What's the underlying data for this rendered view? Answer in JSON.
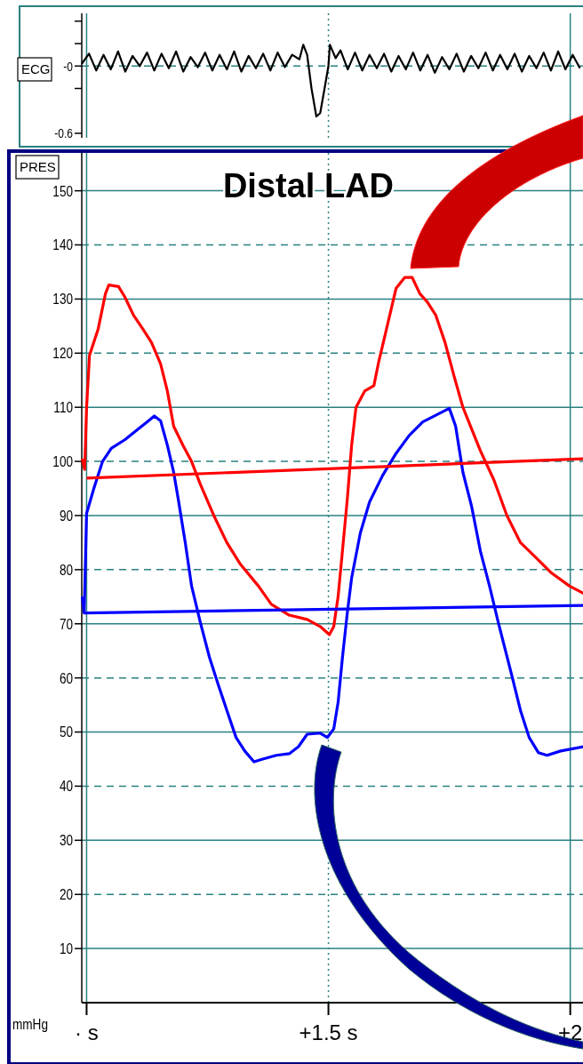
{
  "chart_data": [
    {
      "type": "line",
      "ylabel": "ECG",
      "xlim": [
        0.99,
        2.03
      ],
      "ylim": [
        -0.64,
        0.47
      ],
      "xticks": [
        {
          "value": 1,
          "label": null
        },
        {
          "value": 1.5,
          "label": null
        },
        {
          "value": 2,
          "label": null
        }
      ],
      "yticks": [
        {
          "value": 0.4,
          "label": null
        },
        {
          "value": 0.2,
          "label": null
        },
        {
          "value": 0,
          "label": "-0"
        },
        {
          "value": -0.2,
          "label": null
        },
        {
          "value": -0.6,
          "label": "-0.6"
        }
      ],
      "tick_labels": "y",
      "grid": "x",
      "ref_lines": [
        {
          "axis": "y",
          "value": 0,
          "color": "#2a8080",
          "line_style": "dashed"
        }
      ],
      "series": [
        {
          "color": "#000000",
          "x": [
            0.99,
            1.005,
            1.02,
            1.035,
            1.05,
            1.065,
            1.08,
            1.095,
            1.11,
            1.125,
            1.14,
            1.155,
            1.17,
            1.185,
            1.2,
            1.215,
            1.23,
            1.245,
            1.26,
            1.275,
            1.29,
            1.305,
            1.32,
            1.335,
            1.35,
            1.365,
            1.38,
            1.395,
            1.41,
            1.425,
            1.44,
            1.448,
            1.456,
            1.465,
            1.475,
            1.483,
            1.492,
            1.5,
            1.503,
            1.515,
            1.525,
            1.54,
            1.555,
            1.57,
            1.585,
            1.6,
            1.615,
            1.63,
            1.645,
            1.66,
            1.675,
            1.69,
            1.705,
            1.72,
            1.735,
            1.75,
            1.765,
            1.78,
            1.795,
            1.81,
            1.825,
            1.84,
            1.855,
            1.87,
            1.885,
            1.9,
            1.915,
            1.93,
            1.945,
            1.96,
            1.975,
            1.99,
            2.005,
            2.02
          ],
          "values": [
            0.02,
            0.11,
            -0.04,
            0.1,
            -0.03,
            0.13,
            -0.05,
            0.09,
            0.0,
            0.12,
            -0.04,
            0.11,
            -0.02,
            0.13,
            -0.05,
            0.08,
            -0.01,
            0.12,
            -0.04,
            0.1,
            -0.03,
            0.13,
            -0.05,
            0.09,
            -0.02,
            0.11,
            -0.04,
            0.12,
            -0.01,
            0.1,
            0.06,
            0.19,
            0.1,
            -0.2,
            -0.45,
            -0.42,
            -0.2,
            0.0,
            0.19,
            0.07,
            0.14,
            -0.03,
            0.12,
            -0.04,
            0.1,
            -0.02,
            0.11,
            -0.05,
            0.09,
            -0.03,
            0.12,
            -0.04,
            0.1,
            -0.06,
            0.08,
            -0.03,
            0.11,
            -0.05,
            0.09,
            -0.02,
            0.12,
            -0.04,
            0.1,
            -0.03,
            0.11,
            -0.05,
            0.09,
            -0.02,
            0.12,
            -0.04,
            0.13,
            -0.03,
            0.1,
            -0.02
          ]
        }
      ]
    },
    {
      "type": "line",
      "title": "Distal LAD",
      "ylabel": "PRES",
      "annotations": [
        "mmHg"
      ],
      "xlim": [
        0.99,
        2.03
      ],
      "ylim": [
        0,
        157
      ],
      "xticks": [
        {
          "value": 1,
          "label": "· s"
        },
        {
          "value": 1.5,
          "label": "+1.5 s"
        },
        {
          "value": 2,
          "label": "+2"
        }
      ],
      "yticks": [
        10,
        20,
        30,
        40,
        50,
        60,
        70,
        80,
        90,
        100,
        110,
        120,
        130,
        140,
        150
      ],
      "grid": true,
      "series": [
        {
          "color": "#ff0000",
          "x": [
            0.991,
            0.996,
            1.0,
            1.006,
            1.024,
            1.039,
            1.046,
            1.066,
            1.079,
            1.097,
            1.116,
            1.134,
            1.153,
            1.167,
            1.18,
            1.199,
            1.217,
            1.235,
            1.263,
            1.29,
            1.318,
            1.355,
            1.382,
            1.419,
            1.456,
            1.483,
            1.502,
            1.511,
            1.52,
            1.529,
            1.539,
            1.548,
            1.557,
            1.575,
            1.594,
            1.603,
            1.618,
            1.64,
            1.658,
            1.673,
            1.689,
            1.704,
            1.722,
            1.741,
            1.759,
            1.778,
            1.814,
            1.842,
            1.869,
            1.897,
            1.925,
            1.961,
            1.998,
            2.028
          ],
          "values": [
            100.5,
            98.5,
            110,
            119.6,
            124.5,
            131,
            132.6,
            132.3,
            130.4,
            127,
            124.5,
            122,
            118,
            113,
            106.5,
            103,
            100,
            95.8,
            90,
            85,
            81,
            77,
            73.6,
            71.6,
            70.8,
            69.5,
            68,
            69.5,
            75,
            83.5,
            93,
            103,
            110,
            113,
            114,
            118,
            123.7,
            132,
            134,
            134,
            131,
            129.5,
            127,
            122,
            116,
            110,
            102,
            96.6,
            90,
            85,
            82.6,
            79.4,
            77,
            75.6
          ]
        },
        {
          "color": "#0000ff",
          "x": [
            0.991,
            0.995,
            1.0,
            1.015,
            1.033,
            1.051,
            1.079,
            1.107,
            1.125,
            1.14,
            1.153,
            1.167,
            1.18,
            1.189,
            1.204,
            1.217,
            1.235,
            1.254,
            1.272,
            1.29,
            1.309,
            1.327,
            1.346,
            1.364,
            1.392,
            1.419,
            1.438,
            1.456,
            1.483,
            1.498,
            1.511,
            1.52,
            1.529,
            1.539,
            1.548,
            1.566,
            1.585,
            1.612,
            1.64,
            1.667,
            1.695,
            1.75,
            1.763,
            1.778,
            1.796,
            1.814,
            1.833,
            1.851,
            1.879,
            1.897,
            1.915,
            1.934,
            1.952,
            1.98,
            2.028
          ],
          "values": [
            75,
            72,
            90.4,
            95,
            100,
            102.4,
            104,
            106,
            107.3,
            108.4,
            107.5,
            103,
            98,
            93.3,
            85,
            77,
            70.3,
            63.8,
            58.8,
            54,
            49,
            46.5,
            44.5,
            45,
            45.7,
            46,
            47.3,
            49.6,
            49.8,
            49,
            50.6,
            55.5,
            63.8,
            72,
            78.5,
            86.8,
            92.5,
            97.4,
            101.5,
            104.8,
            107.3,
            109.8,
            106.5,
            98,
            91.7,
            83.5,
            77,
            70.3,
            60.5,
            54,
            49,
            46.2,
            45.7,
            46.5,
            47.3
          ]
        },
        {
          "color": "#ff0000",
          "x": [
            1.0,
            2.028
          ],
          "values": [
            96.9,
            100.5
          ]
        },
        {
          "color": "#0000ff",
          "x": [
            0.995,
            2.028
          ],
          "values": [
            72.0,
            73.4
          ]
        }
      ]
    }
  ]
}
